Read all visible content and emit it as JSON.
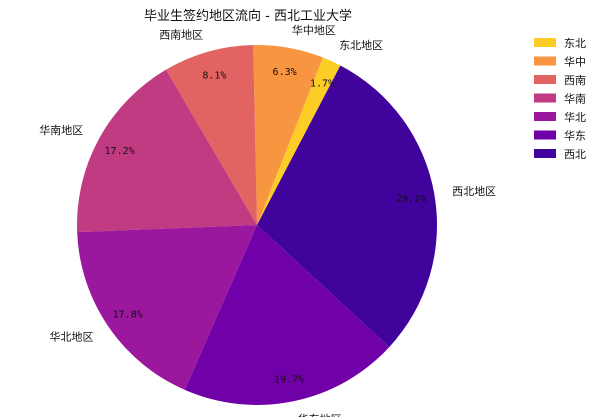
{
  "chart_data": {
    "type": "pie",
    "title": "毕业生签约地区流向 - 西北工业大学",
    "slices": [
      {
        "label": "东北地区",
        "legend_label": "东北",
        "value": 1.7,
        "display": "1.7%",
        "color": "#fcce25"
      },
      {
        "label": "华中地区",
        "legend_label": "华中",
        "value": 6.3,
        "display": "6.3%",
        "color": "#f89540"
      },
      {
        "label": "西南地区",
        "legend_label": "西南",
        "value": 8.1,
        "display": "8.1%",
        "color": "#e16462"
      },
      {
        "label": "华南地区",
        "legend_label": "华南",
        "value": 17.2,
        "display": "17.2%",
        "color": "#c13b82"
      },
      {
        "label": "华北地区",
        "legend_label": "华北",
        "value": 17.8,
        "display": "17.8%",
        "color": "#9b179e"
      },
      {
        "label": "华东地区",
        "legend_label": "华东",
        "value": 19.7,
        "display": "19.7%",
        "color": "#7000a8"
      },
      {
        "label": "西北地区",
        "legend_label": "西北",
        "value": 29.2,
        "display": "29.2%",
        "color": "#40039c"
      }
    ],
    "legend": "top-right"
  }
}
